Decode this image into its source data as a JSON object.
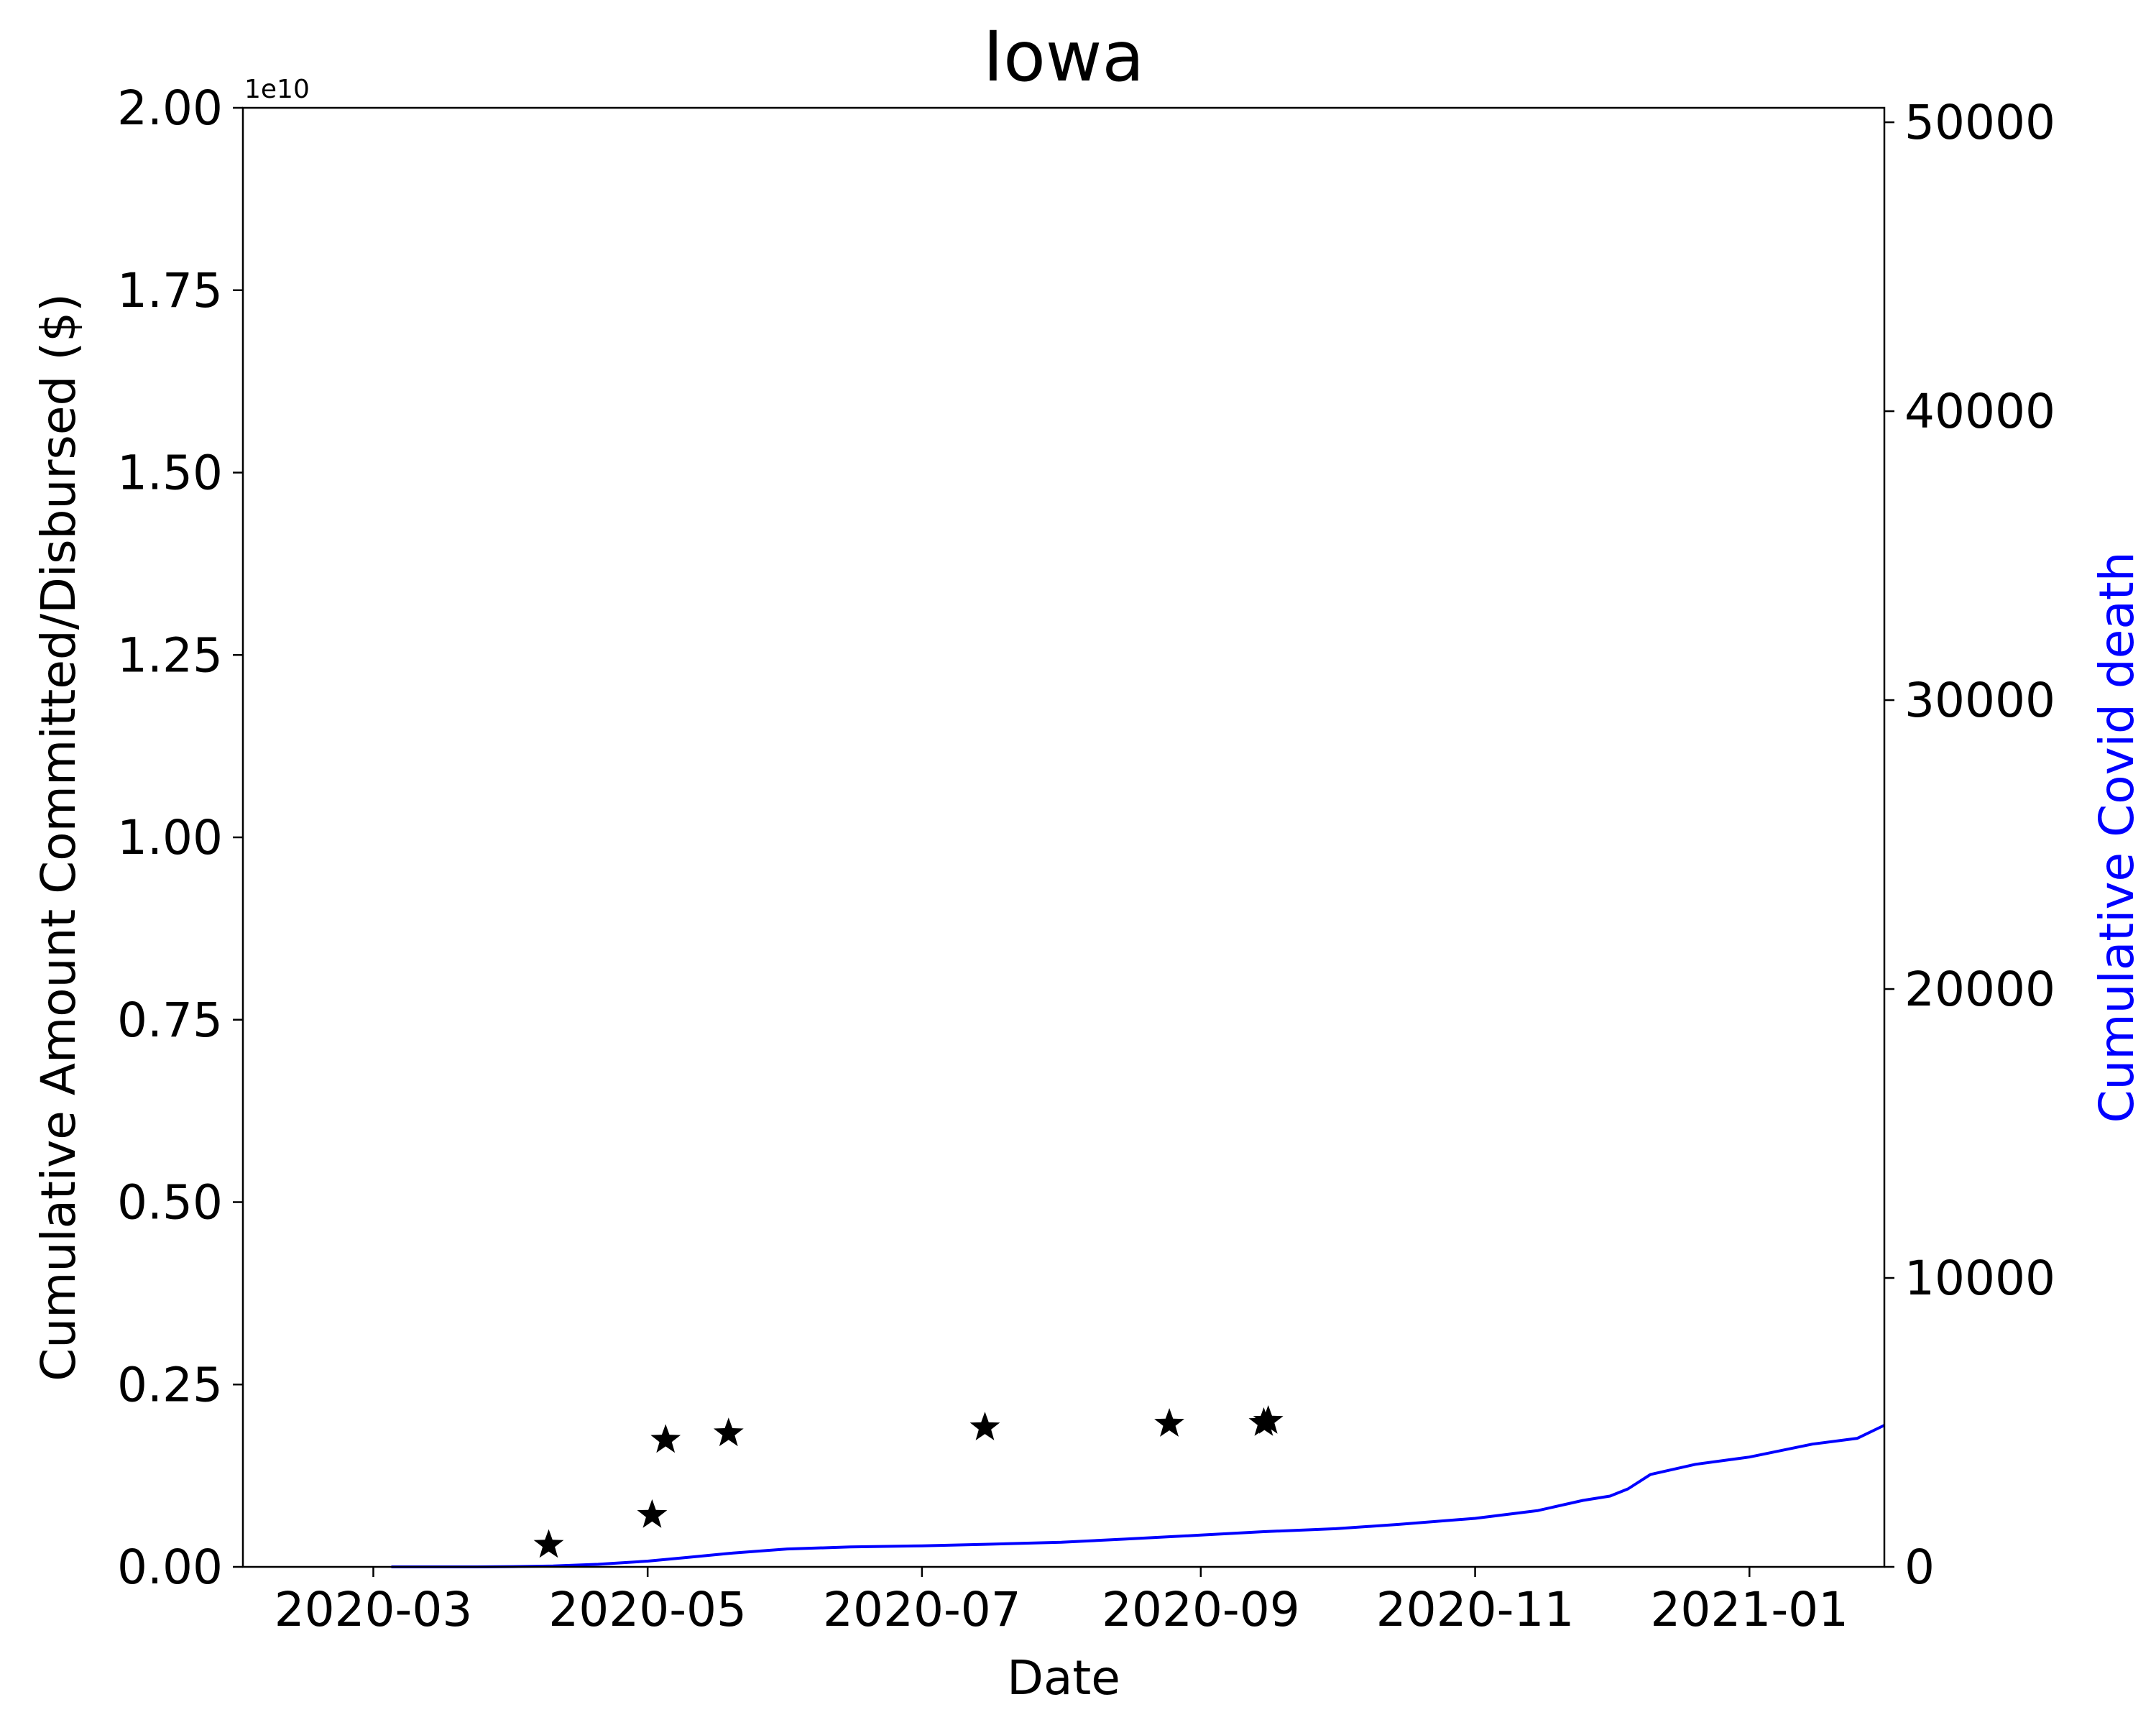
{
  "chart_data": {
    "type": "line",
    "title": "Iowa",
    "xlabel": "Date",
    "ylabel_left": "Cumulative Amount Committed/Disbursed ($)",
    "ylabel_right": "Cumulative Covid death",
    "left_offset_text": "1e10",
    "x_range": [
      "2020-02-01",
      "2021-01-31"
    ],
    "x_ticks": [
      "2020-03",
      "2020-05",
      "2020-07",
      "2020-09",
      "2020-11",
      "2021-01"
    ],
    "ylim_left": [
      0,
      20000000000
    ],
    "left_ticks": [
      "0.00",
      "0.25",
      "0.50",
      "0.75",
      "1.00",
      "1.25",
      "1.50",
      "1.75",
      "2.00"
    ],
    "ylim_right": [
      0,
      50500
    ],
    "right_ticks": [
      "0",
      "10000",
      "20000",
      "30000",
      "40000",
      "50000"
    ],
    "colors": {
      "stars": "#000000",
      "deaths": "#0000ff",
      "axes": "#000000"
    },
    "grid": false,
    "series": [
      {
        "axis": "left",
        "marker": "star",
        "points": [
          {
            "x": "2020-04-09",
            "y": 300000000
          },
          {
            "x": "2020-05-02",
            "y": 710000000
          },
          {
            "x": "2020-05-05",
            "y": 1740000000
          },
          {
            "x": "2020-05-19",
            "y": 1830000000
          },
          {
            "x": "2020-07-15",
            "y": 1910000000
          },
          {
            "x": "2020-08-25",
            "y": 1960000000
          },
          {
            "x": "2020-09-15",
            "y": 1970000000
          },
          {
            "x": "2020-09-16",
            "y": 2000000000
          }
        ]
      },
      {
        "name": "Cumulative Covid death",
        "axis": "right",
        "points": [
          {
            "x": "2020-03-05",
            "y": 0
          },
          {
            "x": "2020-03-24",
            "y": 1
          },
          {
            "x": "2020-04-01",
            "y": 9
          },
          {
            "x": "2020-04-10",
            "y": 31
          },
          {
            "x": "2020-04-20",
            "y": 90
          },
          {
            "x": "2020-05-01",
            "y": 200
          },
          {
            "x": "2020-05-10",
            "y": 330
          },
          {
            "x": "2020-05-20",
            "y": 480
          },
          {
            "x": "2020-06-01",
            "y": 620
          },
          {
            "x": "2020-06-15",
            "y": 690
          },
          {
            "x": "2020-07-01",
            "y": 730
          },
          {
            "x": "2020-07-15",
            "y": 780
          },
          {
            "x": "2020-08-01",
            "y": 850
          },
          {
            "x": "2020-08-15",
            "y": 960
          },
          {
            "x": "2020-09-01",
            "y": 1100
          },
          {
            "x": "2020-09-15",
            "y": 1220
          },
          {
            "x": "2020-10-01",
            "y": 1320
          },
          {
            "x": "2020-10-15",
            "y": 1470
          },
          {
            "x": "2020-11-01",
            "y": 1680
          },
          {
            "x": "2020-11-15",
            "y": 1950
          },
          {
            "x": "2020-11-25",
            "y": 2300
          },
          {
            "x": "2020-12-01",
            "y": 2450
          },
          {
            "x": "2020-12-05",
            "y": 2700
          },
          {
            "x": "2020-12-10",
            "y": 3200
          },
          {
            "x": "2020-12-20",
            "y": 3550
          },
          {
            "x": "2021-01-01",
            "y": 3800
          },
          {
            "x": "2021-01-15",
            "y": 4250
          },
          {
            "x": "2021-01-25",
            "y": 4450
          },
          {
            "x": "2021-01-31",
            "y": 4900
          }
        ]
      }
    ]
  }
}
